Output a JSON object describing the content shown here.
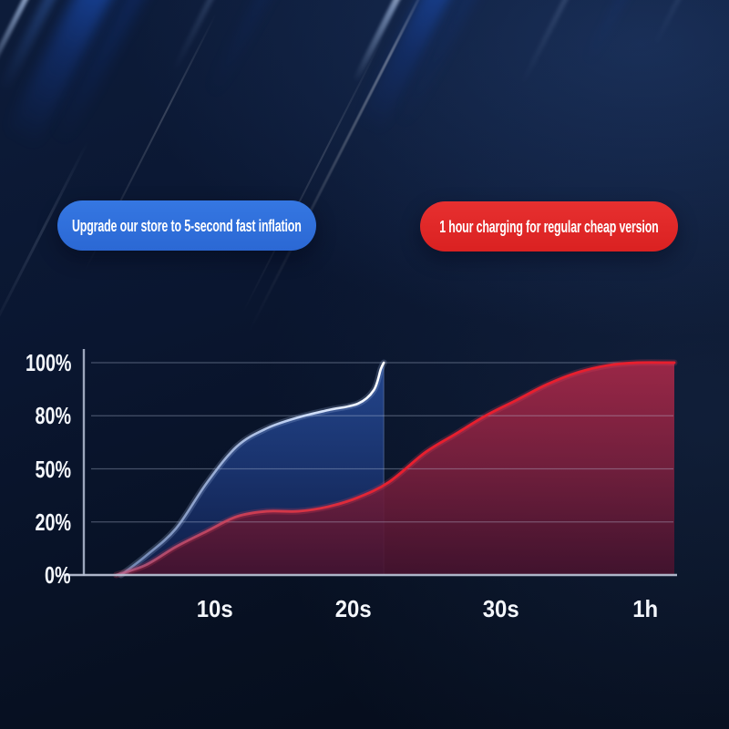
{
  "banners": {
    "fast": {
      "label": "Upgrade our store to 5-second fast inflation",
      "color": "#2d6fd9",
      "text_color": "#ffffff"
    },
    "regular": {
      "label": "1 hour charging for regular cheap version",
      "color": "#e02625",
      "text_color": "#ffffff"
    }
  },
  "chart_data": {
    "type": "area",
    "title": "",
    "xlabel": "",
    "ylabel": "",
    "grid": true,
    "legend_position": "none (colored pills above act as series labels)",
    "y_axis_nonlinear": "tick labels 0/20/50/80/100% are evenly spaced on axis",
    "x_ticks": [
      {
        "label": "10s",
        "pos": 0.222
      },
      {
        "label": "20s",
        "pos": 0.457
      },
      {
        "label": "30s",
        "pos": 0.707
      },
      {
        "label": "1h",
        "pos": 0.951
      }
    ],
    "y_ticks": [
      {
        "label": "100%",
        "pos": 1.0
      },
      {
        "label": "80%",
        "pos": 0.75
      },
      {
        "label": "50%",
        "pos": 0.5
      },
      {
        "label": "20%",
        "pos": 0.25
      },
      {
        "label": "0%",
        "pos": 0.0
      }
    ],
    "series": [
      {
        "name": "5-second fast inflation (upgraded)",
        "points": [
          [
            0.063,
            0
          ],
          [
            0.105,
            0.09
          ],
          [
            0.156,
            0.219
          ],
          [
            0.208,
            0.433
          ],
          [
            0.259,
            0.605
          ],
          [
            0.31,
            0.691
          ],
          [
            0.363,
            0.742
          ],
          [
            0.414,
            0.777
          ],
          [
            0.464,
            0.807
          ],
          [
            0.491,
            0.871
          ],
          [
            0.503,
            0.97
          ],
          [
            0.508,
            1.0
          ]
        ]
      },
      {
        "name": "1 hour charging (regular cheap version)",
        "points": [
          [
            0.055,
            0
          ],
          [
            0.105,
            0.047
          ],
          [
            0.156,
            0.133
          ],
          [
            0.208,
            0.206
          ],
          [
            0.259,
            0.275
          ],
          [
            0.31,
            0.3
          ],
          [
            0.363,
            0.3
          ],
          [
            0.414,
            0.322
          ],
          [
            0.464,
            0.365
          ],
          [
            0.517,
            0.438
          ],
          [
            0.579,
            0.579
          ],
          [
            0.63,
            0.665
          ],
          [
            0.681,
            0.751
          ],
          [
            0.733,
            0.824
          ],
          [
            0.784,
            0.897
          ],
          [
            0.835,
            0.953
          ],
          [
            0.887,
            0.987
          ],
          [
            0.938,
            1.0
          ],
          [
            1.0,
            1.0
          ]
        ]
      }
    ],
    "colors": {
      "blue_fill_top": "#24478f",
      "blue_fill_mid": "#1a3470",
      "blue_fill_bottom": "#101f4a",
      "blue_stroke_start": "#7d94c4",
      "blue_stroke_end": "#cfe0ff",
      "blue_edge": "#8ca0c8",
      "red_fill_top": "#a62848",
      "red_fill_mid": "#7a1f3d",
      "red_fill_bottom": "#48122e",
      "red_stroke_soft": "#bE5f87",
      "red_stroke": "#e71f2e",
      "grid": "#c3cde6",
      "axis": "#a9b3c9",
      "axis_base": "#b6bfd2"
    }
  }
}
